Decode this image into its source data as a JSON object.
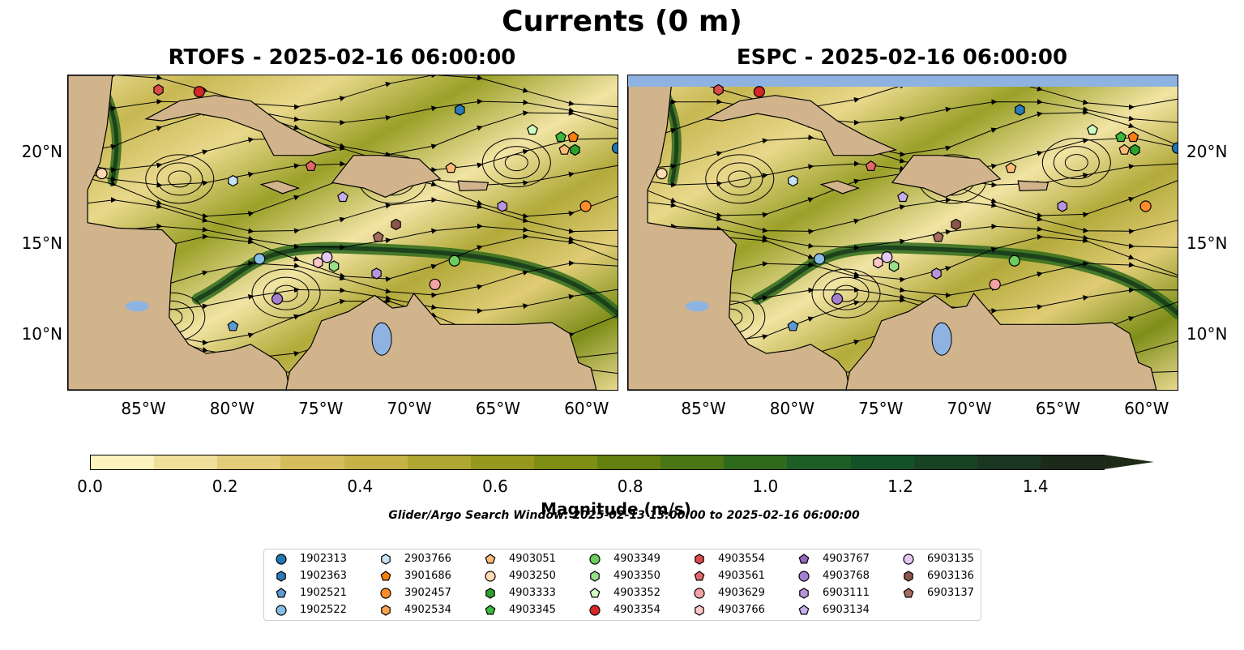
{
  "title": "Currents (0 m)",
  "panels": [
    {
      "subtitle": "RTOFS - 2025-02-16 06:00:00"
    },
    {
      "subtitle": "ESPC - 2025-02-16 06:00:00"
    }
  ],
  "map_extent": {
    "lon_min": -89.3,
    "lon_max": -58.3,
    "lat_min": 7.0,
    "lat_max": 24.3
  },
  "lon_ticks": [
    "85°W",
    "80°W",
    "75°W",
    "70°W",
    "65°W",
    "60°W"
  ],
  "lat_ticks": [
    "20°N",
    "15°N",
    "10°N"
  ],
  "colorbar": {
    "label": "Magnitude (m/s)",
    "ticks": [
      "0.0",
      "0.2",
      "0.4",
      "0.6",
      "0.8",
      "1.0",
      "1.2",
      "1.4"
    ],
    "colors": [
      "#fbf3bd",
      "#efdf9a",
      "#e4cd78",
      "#d6bd5c",
      "#c6b247",
      "#b0a632",
      "#97991f",
      "#7e8e14",
      "#648010",
      "#4a7514",
      "#2f6a1c",
      "#1d5e25",
      "#155127",
      "#174324",
      "#1a3620",
      "#1c2a19"
    ]
  },
  "search_window": "Glider/Argo Search Window: 2025-02-13 13:00:00 to 2025-02-16 06:00:00",
  "legend": [
    {
      "id": "1902313",
      "shape": "circle",
      "color": "#1f77b4"
    },
    {
      "id": "1902363",
      "shape": "hexagon",
      "color": "#2b7bba"
    },
    {
      "id": "1902521",
      "shape": "pentagon",
      "color": "#5b9bd5"
    },
    {
      "id": "1902522",
      "shape": "circle",
      "color": "#87bfe6"
    },
    {
      "id": "2903766",
      "shape": "hexagon",
      "color": "#c6e2f5"
    },
    {
      "id": "3901686",
      "shape": "pentagon",
      "color": "#ff7f0e"
    },
    {
      "id": "3902457",
      "shape": "circle",
      "color": "#ff8c2a"
    },
    {
      "id": "4902534",
      "shape": "hexagon",
      "color": "#ffa24d"
    },
    {
      "id": "4903051",
      "shape": "pentagon",
      "color": "#ffbb78"
    },
    {
      "id": "4903250",
      "shape": "circle",
      "color": "#ffd9b0"
    },
    {
      "id": "4903333",
      "shape": "hexagon",
      "color": "#2ca02c"
    },
    {
      "id": "4903345",
      "shape": "pentagon",
      "color": "#3cb83c"
    },
    {
      "id": "4903349",
      "shape": "circle",
      "color": "#6ccc5f"
    },
    {
      "id": "4903350",
      "shape": "hexagon",
      "color": "#98df8a"
    },
    {
      "id": "4903352",
      "shape": "pentagon",
      "color": "#cfffc4"
    },
    {
      "id": "4903354",
      "shape": "circle",
      "color": "#d62728"
    },
    {
      "id": "4903554",
      "shape": "hexagon",
      "color": "#dc4a4c"
    },
    {
      "id": "4903561",
      "shape": "pentagon",
      "color": "#e6676a"
    },
    {
      "id": "4903629",
      "shape": "circle",
      "color": "#f4a3a4"
    },
    {
      "id": "4903766",
      "shape": "hexagon",
      "color": "#ffc7c8"
    },
    {
      "id": "4903767",
      "shape": "pentagon",
      "color": "#9467bd"
    },
    {
      "id": "4903768",
      "shape": "circle",
      "color": "#a57fd0"
    },
    {
      "id": "6903111",
      "shape": "hexagon",
      "color": "#b695dc"
    },
    {
      "id": "6903134",
      "shape": "pentagon",
      "color": "#c5b0e8"
    },
    {
      "id": "6903135",
      "shape": "circle",
      "color": "#e6c8f5"
    },
    {
      "id": "6903136",
      "shape": "hexagon",
      "color": "#8c564b"
    },
    {
      "id": "6903137",
      "shape": "pentagon",
      "color": "#a66c5f"
    }
  ],
  "observations": [
    {
      "id": "4903554",
      "lon": -84.2,
      "lat": 23.5
    },
    {
      "id": "4903354",
      "lon": -81.9,
      "lat": 23.4
    },
    {
      "id": "1902363",
      "lon": -67.2,
      "lat": 22.4
    },
    {
      "id": "4903352",
      "lon": -63.1,
      "lat": 21.3
    },
    {
      "id": "4903345",
      "lon": -61.5,
      "lat": 20.9
    },
    {
      "id": "3901686",
      "lon": -60.8,
      "lat": 20.9
    },
    {
      "id": "4903051",
      "lon": -61.3,
      "lat": 20.2
    },
    {
      "id": "4903333",
      "lon": -60.7,
      "lat": 20.2
    },
    {
      "id": "1902313",
      "lon": -58.3,
      "lat": 20.3
    },
    {
      "id": "4903250",
      "lon": -87.4,
      "lat": 18.9
    },
    {
      "id": "4903561",
      "lon": -75.6,
      "lat": 19.3
    },
    {
      "id": "4903051",
      "lon": -67.7,
      "lat": 19.2
    },
    {
      "id": "2903766",
      "lon": -80.0,
      "lat": 18.5
    },
    {
      "id": "6903134",
      "lon": -73.8,
      "lat": 17.6
    },
    {
      "id": "6903111",
      "lon": -64.8,
      "lat": 17.1
    },
    {
      "id": "3902457",
      "lon": -60.1,
      "lat": 17.1
    },
    {
      "id": "6903136",
      "lon": -70.8,
      "lat": 16.1
    },
    {
      "id": "6903137",
      "lon": -71.8,
      "lat": 15.4
    },
    {
      "id": "1902522",
      "lon": -78.5,
      "lat": 14.2
    },
    {
      "id": "4903766",
      "lon": -75.2,
      "lat": 14.0
    },
    {
      "id": "6903135",
      "lon": -74.7,
      "lat": 14.3
    },
    {
      "id": "4903350",
      "lon": -74.3,
      "lat": 13.8
    },
    {
      "id": "4903349",
      "lon": -67.5,
      "lat": 14.1
    },
    {
      "id": "6903111",
      "lon": -71.9,
      "lat": 13.4
    },
    {
      "id": "4903629",
      "lon": -68.6,
      "lat": 12.8
    },
    {
      "id": "4903768",
      "lon": -77.5,
      "lat": 12.0
    },
    {
      "id": "1902521",
      "lon": -80.0,
      "lat": 10.5
    }
  ]
}
